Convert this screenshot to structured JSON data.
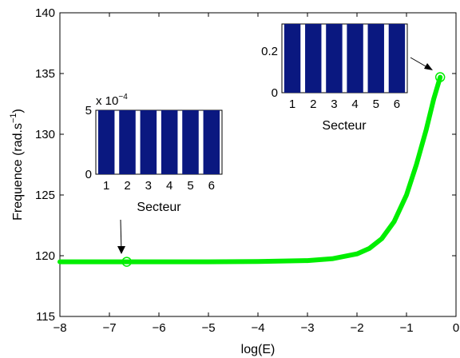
{
  "chart_data": [
    {
      "type": "line",
      "xlabel": "log(E)",
      "ylabel_base": "Frequence (rad.s",
      "ylabel_sup": "−1",
      "ylabel_close": ")",
      "xlim": [
        -8,
        0
      ],
      "ylim": [
        115,
        140
      ],
      "xticks": [
        "−8",
        "−7",
        "−6",
        "−5",
        "−4",
        "−3",
        "−2",
        "−1",
        "0"
      ],
      "yticks": [
        "115",
        "120",
        "125",
        "130",
        "135",
        "140"
      ],
      "line_color": "#00ee00",
      "series": [
        {
          "x": [
            -8,
            -7,
            -6.65,
            -6,
            -5,
            -4,
            -3,
            -2.5,
            -2,
            -1.75,
            -1.5,
            -1.25,
            -1,
            -0.8,
            -0.6,
            -0.45,
            -0.32
          ],
          "y": [
            119.5,
            119.5,
            119.5,
            119.5,
            119.5,
            119.52,
            119.6,
            119.75,
            120.15,
            120.6,
            121.4,
            122.8,
            125.0,
            127.5,
            130.4,
            132.9,
            134.7
          ]
        }
      ],
      "markers": [
        {
          "x": -6.65,
          "y": 119.5
        },
        {
          "x": -0.32,
          "y": 134.7
        }
      ]
    },
    {
      "type": "bar",
      "xlabel": "Secteur",
      "categories": [
        "1",
        "2",
        "3",
        "4",
        "5",
        "6"
      ],
      "values": [
        5,
        5,
        5,
        5,
        5,
        5
      ],
      "ylim": [
        0,
        5
      ],
      "yticks": [
        "0",
        "5"
      ],
      "exponent_base": "x 10",
      "exponent_power": "−4",
      "bar_color": "#0a1880"
    },
    {
      "type": "bar",
      "xlabel": "Secteur",
      "categories": [
        "1",
        "2",
        "3",
        "4",
        "5",
        "6"
      ],
      "values": [
        0.33,
        0.33,
        0.33,
        0.33,
        0.33,
        0.33
      ],
      "ylim": [
        0,
        0.33
      ],
      "yticks": [
        "0",
        "0.2"
      ],
      "bar_color": "#0a1880"
    }
  ]
}
